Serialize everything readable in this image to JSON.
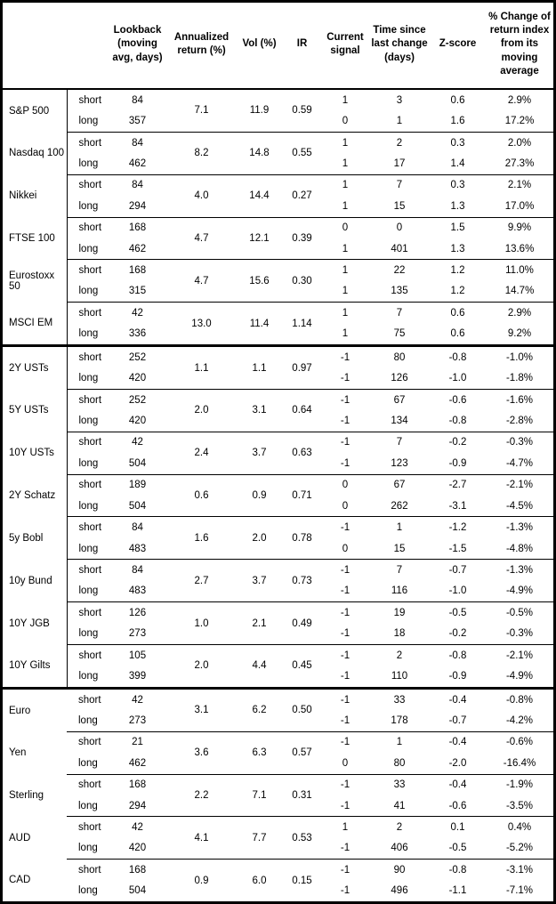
{
  "header": {
    "columns": [
      "",
      "",
      "Lookback\n(moving\navg, days)",
      "Annualized\nreturn (%)",
      "Vol (%)",
      "IR",
      "Current\nsignal",
      "Time since\nlast change\n(days)",
      "Z-score",
      "% Change of\nreturn index\nfrom its\nmoving\naverage"
    ]
  },
  "sections": [
    {
      "assets": [
        {
          "name": "S&P 500",
          "ann_return": "7.1",
          "vol": "11.9",
          "ir": "0.59",
          "rows": [
            {
              "horizon": "short",
              "lookback": "84",
              "signal": "1",
              "time_since": "3",
              "zscore": "0.6",
              "pct_change": "2.9%"
            },
            {
              "horizon": "long",
              "lookback": "357",
              "signal": "0",
              "time_since": "1",
              "zscore": "1.6",
              "pct_change": "17.2%"
            }
          ]
        },
        {
          "name": "Nasdaq 100",
          "ann_return": "8.2",
          "vol": "14.8",
          "ir": "0.55",
          "rows": [
            {
              "horizon": "short",
              "lookback": "84",
              "signal": "1",
              "time_since": "2",
              "zscore": "0.3",
              "pct_change": "2.0%"
            },
            {
              "horizon": "long",
              "lookback": "462",
              "signal": "1",
              "time_since": "17",
              "zscore": "1.4",
              "pct_change": "27.3%"
            }
          ]
        },
        {
          "name": "Nikkei",
          "ann_return": "4.0",
          "vol": "14.4",
          "ir": "0.27",
          "rows": [
            {
              "horizon": "short",
              "lookback": "84",
              "signal": "1",
              "time_since": "7",
              "zscore": "0.3",
              "pct_change": "2.1%"
            },
            {
              "horizon": "long",
              "lookback": "294",
              "signal": "1",
              "time_since": "15",
              "zscore": "1.3",
              "pct_change": "17.0%"
            }
          ]
        },
        {
          "name": "FTSE 100",
          "ann_return": "4.7",
          "vol": "12.1",
          "ir": "0.39",
          "rows": [
            {
              "horizon": "short",
              "lookback": "168",
              "signal": "0",
              "time_since": "0",
              "zscore": "1.5",
              "pct_change": "9.9%"
            },
            {
              "horizon": "long",
              "lookback": "462",
              "signal": "1",
              "time_since": "401",
              "zscore": "1.3",
              "pct_change": "13.6%"
            }
          ]
        },
        {
          "name": "Eurostoxx 50",
          "ann_return": "4.7",
          "vol": "15.6",
          "ir": "0.30",
          "rows": [
            {
              "horizon": "short",
              "lookback": "168",
              "signal": "1",
              "time_since": "22",
              "zscore": "1.2",
              "pct_change": "11.0%"
            },
            {
              "horizon": "long",
              "lookback": "315",
              "signal": "1",
              "time_since": "135",
              "zscore": "1.2",
              "pct_change": "14.7%"
            }
          ]
        },
        {
          "name": "MSCI EM",
          "ann_return": "13.0",
          "vol": "11.4",
          "ir": "1.14",
          "rows": [
            {
              "horizon": "short",
              "lookback": "42",
              "signal": "1",
              "time_since": "7",
              "zscore": "0.6",
              "pct_change": "2.9%"
            },
            {
              "horizon": "long",
              "lookback": "336",
              "signal": "1",
              "time_since": "75",
              "zscore": "0.6",
              "pct_change": "9.2%"
            }
          ]
        }
      ]
    },
    {
      "assets": [
        {
          "name": "2Y USTs",
          "ann_return": "1.1",
          "vol": "1.1",
          "ir": "0.97",
          "rows": [
            {
              "horizon": "short",
              "lookback": "252",
              "signal": "-1",
              "time_since": "80",
              "zscore": "-0.8",
              "pct_change": "-1.0%"
            },
            {
              "horizon": "long",
              "lookback": "420",
              "signal": "-1",
              "time_since": "126",
              "zscore": "-1.0",
              "pct_change": "-1.8%"
            }
          ]
        },
        {
          "name": "5Y USTs",
          "ann_return": "2.0",
          "vol": "3.1",
          "ir": "0.64",
          "rows": [
            {
              "horizon": "short",
              "lookback": "252",
              "signal": "-1",
              "time_since": "67",
              "zscore": "-0.6",
              "pct_change": "-1.6%"
            },
            {
              "horizon": "long",
              "lookback": "420",
              "signal": "-1",
              "time_since": "134",
              "zscore": "-0.8",
              "pct_change": "-2.8%"
            }
          ]
        },
        {
          "name": "10Y USTs",
          "ann_return": "2.4",
          "vol": "3.7",
          "ir": "0.63",
          "rows": [
            {
              "horizon": "short",
              "lookback": "42",
              "signal": "-1",
              "time_since": "7",
              "zscore": "-0.2",
              "pct_change": "-0.3%"
            },
            {
              "horizon": "long",
              "lookback": "504",
              "signal": "-1",
              "time_since": "123",
              "zscore": "-0.9",
              "pct_change": "-4.7%"
            }
          ]
        },
        {
          "name": "2Y Schatz",
          "ann_return": "0.6",
          "vol": "0.9",
          "ir": "0.71",
          "rows": [
            {
              "horizon": "short",
              "lookback": "189",
              "signal": "0",
              "time_since": "67",
              "zscore": "-2.7",
              "pct_change": "-2.1%"
            },
            {
              "horizon": "long",
              "lookback": "504",
              "signal": "0",
              "time_since": "262",
              "zscore": "-3.1",
              "pct_change": "-4.5%"
            }
          ]
        },
        {
          "name": "5y Bobl",
          "ann_return": "1.6",
          "vol": "2.0",
          "ir": "0.78",
          "rows": [
            {
              "horizon": "short",
              "lookback": "84",
              "signal": "-1",
              "time_since": "1",
              "zscore": "-1.2",
              "pct_change": "-1.3%"
            },
            {
              "horizon": "long",
              "lookback": "483",
              "signal": "0",
              "time_since": "15",
              "zscore": "-1.5",
              "pct_change": "-4.8%"
            }
          ]
        },
        {
          "name": "10y Bund",
          "ann_return": "2.7",
          "vol": "3.7",
          "ir": "0.73",
          "rows": [
            {
              "horizon": "short",
              "lookback": "84",
              "signal": "-1",
              "time_since": "7",
              "zscore": "-0.7",
              "pct_change": "-1.3%"
            },
            {
              "horizon": "long",
              "lookback": "483",
              "signal": "-1",
              "time_since": "116",
              "zscore": "-1.0",
              "pct_change": "-4.9%"
            }
          ]
        },
        {
          "name": "10Y JGB",
          "ann_return": "1.0",
          "vol": "2.1",
          "ir": "0.49",
          "rows": [
            {
              "horizon": "short",
              "lookback": "126",
              "signal": "-1",
              "time_since": "19",
              "zscore": "-0.5",
              "pct_change": "-0.5%"
            },
            {
              "horizon": "long",
              "lookback": "273",
              "signal": "-1",
              "time_since": "18",
              "zscore": "-0.2",
              "pct_change": "-0.3%"
            }
          ]
        },
        {
          "name": "10Y Gilts",
          "ann_return": "2.0",
          "vol": "4.4",
          "ir": "0.45",
          "rows": [
            {
              "horizon": "short",
              "lookback": "105",
              "signal": "-1",
              "time_since": "2",
              "zscore": "-0.8",
              "pct_change": "-2.1%"
            },
            {
              "horizon": "long",
              "lookback": "399",
              "signal": "-1",
              "time_since": "110",
              "zscore": "-0.9",
              "pct_change": "-4.9%"
            }
          ]
        }
      ]
    },
    {
      "assets": [
        {
          "name": "Euro",
          "ann_return": "3.1",
          "vol": "6.2",
          "ir": "0.50",
          "rows": [
            {
              "horizon": "short",
              "lookback": "42",
              "signal": "-1",
              "time_since": "33",
              "zscore": "-0.4",
              "pct_change": "-0.8%"
            },
            {
              "horizon": "long",
              "lookback": "273",
              "signal": "-1",
              "time_since": "178",
              "zscore": "-0.7",
              "pct_change": "-4.2%"
            }
          ]
        },
        {
          "name": "Yen",
          "ann_return": "3.6",
          "vol": "6.3",
          "ir": "0.57",
          "rows": [
            {
              "horizon": "short",
              "lookback": "21",
              "signal": "-1",
              "time_since": "1",
              "zscore": "-0.4",
              "pct_change": "-0.6%"
            },
            {
              "horizon": "long",
              "lookback": "462",
              "signal": "0",
              "time_since": "80",
              "zscore": "-2.0",
              "pct_change": "-16.4%"
            }
          ]
        },
        {
          "name": "Sterling",
          "ann_return": "2.2",
          "vol": "7.1",
          "ir": "0.31",
          "rows": [
            {
              "horizon": "short",
              "lookback": "168",
              "signal": "-1",
              "time_since": "33",
              "zscore": "-0.4",
              "pct_change": "-1.9%"
            },
            {
              "horizon": "long",
              "lookback": "294",
              "signal": "-1",
              "time_since": "41",
              "zscore": "-0.6",
              "pct_change": "-3.5%"
            }
          ]
        },
        {
          "name": "AUD",
          "ann_return": "4.1",
          "vol": "7.7",
          "ir": "0.53",
          "rows": [
            {
              "horizon": "short",
              "lookback": "42",
              "signal": "1",
              "time_since": "2",
              "zscore": "0.1",
              "pct_change": "0.4%"
            },
            {
              "horizon": "long",
              "lookback": "420",
              "signal": "-1",
              "time_since": "406",
              "zscore": "-0.5",
              "pct_change": "-5.2%"
            }
          ]
        },
        {
          "name": "CAD",
          "ann_return": "0.9",
          "vol": "6.0",
          "ir": "0.15",
          "rows": [
            {
              "horizon": "short",
              "lookback": "168",
              "signal": "-1",
              "time_since": "90",
              "zscore": "-0.8",
              "pct_change": "-3.1%"
            },
            {
              "horizon": "long",
              "lookback": "504",
              "signal": "-1",
              "time_since": "496",
              "zscore": "-1.1",
              "pct_change": "-7.1%"
            }
          ]
        }
      ]
    }
  ]
}
